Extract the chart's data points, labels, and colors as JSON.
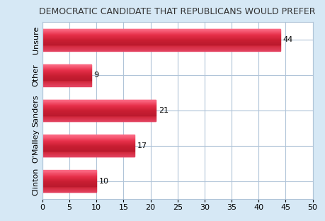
{
  "title": "DEMOCRATIC CANDIDATE THAT REPUBLICANS WOULD PREFER",
  "categories": [
    "Clinton",
    "O'Malley",
    "Sanders",
    "Other",
    "Unsure"
  ],
  "values": [
    10,
    17,
    21,
    9,
    44
  ],
  "bar_color_dark": "#cc1a3a",
  "bar_color_mid": "#e8304a",
  "bar_color_light": "#f07080",
  "background_color": "#d6e8f5",
  "plot_background_color": "#ffffff",
  "xlim": [
    0,
    50
  ],
  "xticks": [
    0,
    5,
    10,
    15,
    20,
    25,
    30,
    35,
    40,
    45,
    50
  ],
  "title_fontsize": 9,
  "label_fontsize": 8,
  "value_fontsize": 8,
  "grid_color": "#b0c4d8"
}
